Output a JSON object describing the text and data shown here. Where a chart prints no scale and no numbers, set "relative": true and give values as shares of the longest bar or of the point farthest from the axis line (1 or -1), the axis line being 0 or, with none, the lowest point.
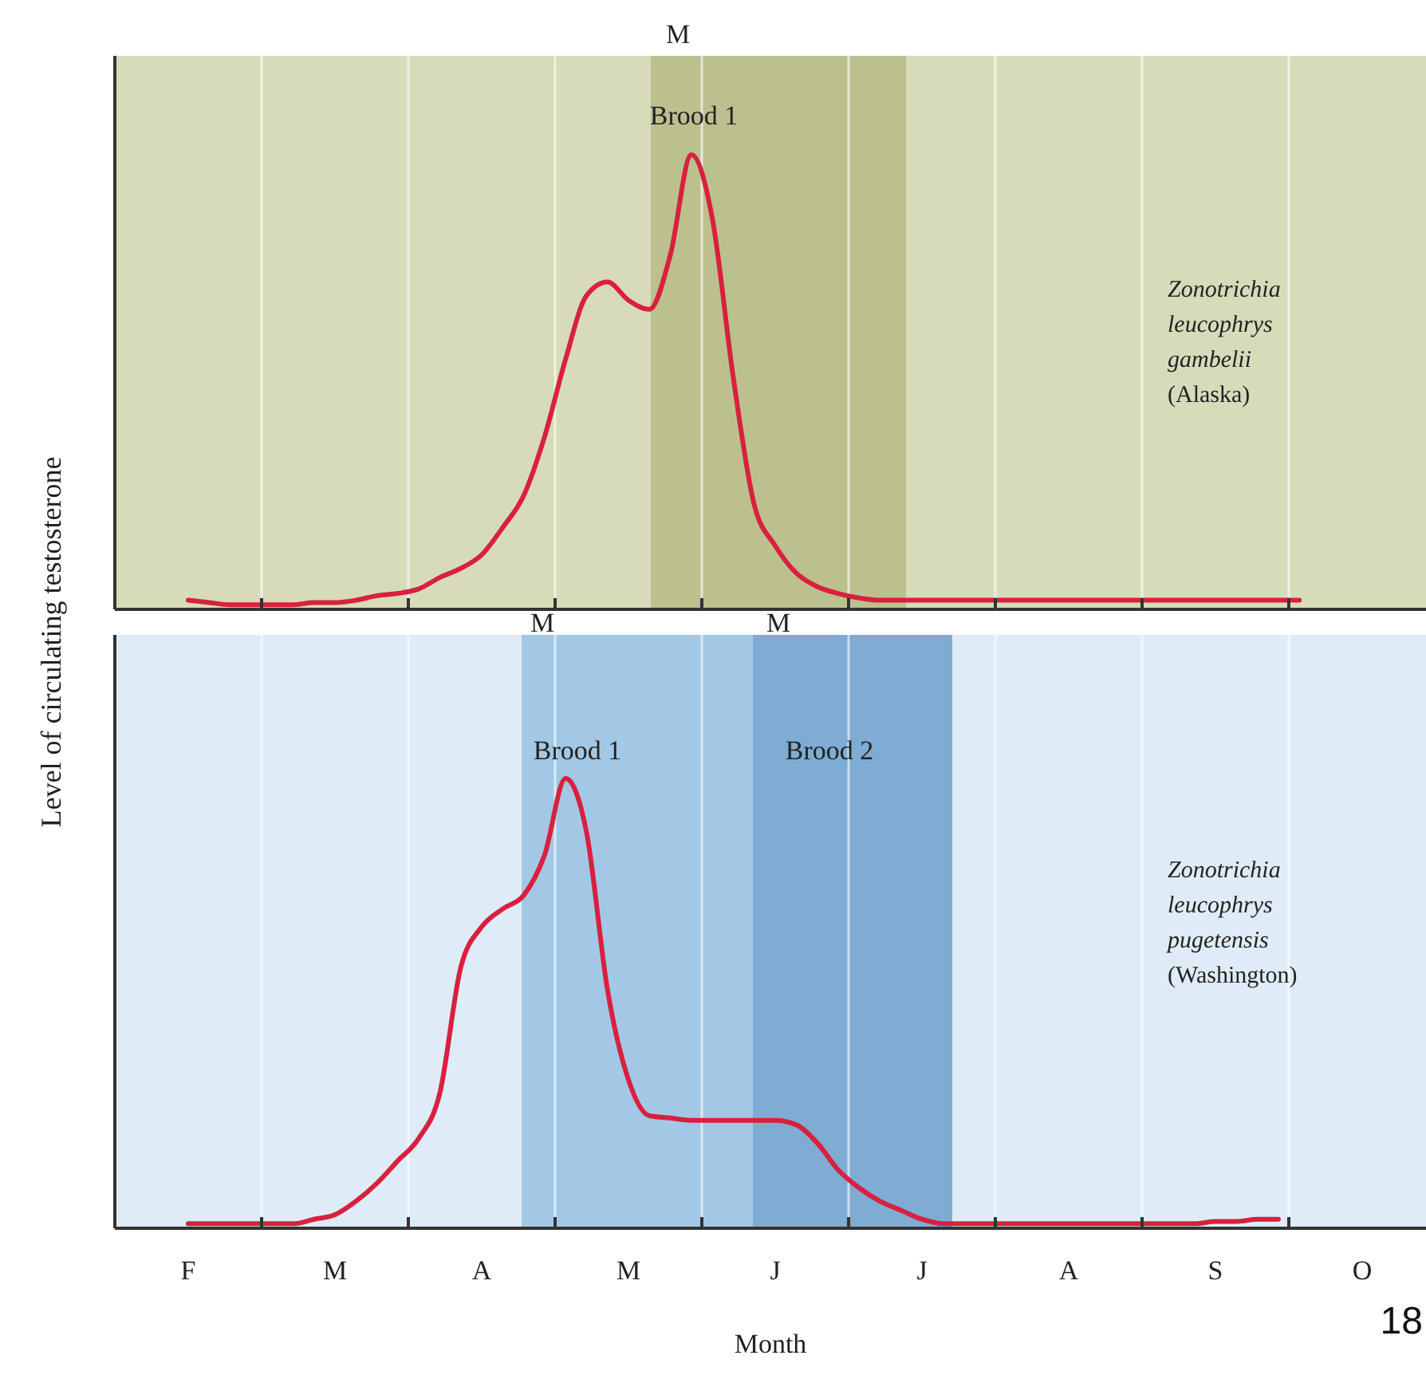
{
  "chart_data": [
    {
      "type": "line",
      "relative": true,
      "ylabel": "Level of circulating testosterone",
      "tick_labels": false,
      "grid": "x",
      "categories": [
        null,
        null,
        null,
        null,
        null,
        null,
        null,
        null,
        null,
        null,
        null,
        null,
        null,
        null,
        null,
        null,
        null,
        null,
        null,
        null,
        null,
        null,
        null,
        null,
        null,
        null,
        null,
        null,
        null,
        null,
        null,
        null,
        null,
        null,
        null,
        null,
        null,
        null,
        null,
        null,
        null,
        null,
        null,
        null,
        null,
        null,
        null,
        null,
        null,
        null,
        null,
        null,
        null,
        null,
        null,
        null,
        null,
        null,
        null,
        null,
        null,
        null,
        null
      ],
      "annotations": [
        "M",
        "Brood 1",
        "Zonotrichia\nleucophrys\ngambelii\n(Alaska)"
      ],
      "series": [
        {
          "color": "#d9203f",
          "values": [
            null,
            null,
            null,
            0.02,
            0.015,
            0.01,
            0.01,
            0.01,
            0.01,
            0.015,
            0.015,
            0.02,
            0.03,
            0.035,
            0.045,
            0.07,
            0.09,
            0.12,
            0.18,
            0.25,
            0.38,
            0.55,
            0.69,
            0.72,
            0.68,
            0.66,
            0.78,
            1.0,
            0.86,
            0.51,
            0.23,
            0.14,
            0.08,
            0.05,
            0.035,
            0.025,
            0.02,
            0.02,
            0.02,
            0.02,
            0.02,
            0.02,
            0.02,
            0.02,
            0.02,
            0.02,
            0.02,
            0.02,
            0.02,
            0.02,
            0.02,
            0.02,
            0.02,
            0.02,
            0.02,
            0.02,
            0.02,
            null,
            null,
            null,
            null,
            null,
            null
          ]
        }
      ]
    },
    {
      "type": "line",
      "relative": true,
      "xlabel": "Month",
      "tick_labels": "x",
      "grid": "x",
      "categories": [
        null,
        null,
        null,
        "F",
        null,
        null,
        null,
        null,
        null,
        null,
        "M",
        null,
        null,
        null,
        null,
        null,
        null,
        "A",
        null,
        null,
        null,
        null,
        null,
        null,
        "M",
        null,
        null,
        null,
        null,
        null,
        null,
        "J",
        null,
        null,
        null,
        null,
        null,
        null,
        "J",
        null,
        null,
        null,
        null,
        null,
        null,
        "A",
        null,
        null,
        null,
        null,
        null,
        null,
        "S",
        null,
        null,
        null,
        null,
        null,
        null,
        "O",
        null,
        null,
        null
      ],
      "annotations": [
        "M",
        "M",
        "Brood 1",
        "Brood 2",
        "Zonotrichia\nleucophrys\npugetensis\n(Washington)",
        "18"
      ],
      "series": [
        {
          "color": "#d9203f",
          "values": [
            null,
            null,
            null,
            0.01,
            0.01,
            0.01,
            0.01,
            0.01,
            0.01,
            0.02,
            0.03,
            0.06,
            0.1,
            0.15,
            0.2,
            0.3,
            0.58,
            0.67,
            0.71,
            0.74,
            0.83,
            1.0,
            0.88,
            0.53,
            0.33,
            0.25,
            0.245,
            0.24,
            0.24,
            0.24,
            0.24,
            0.24,
            0.23,
            0.19,
            0.13,
            0.09,
            0.06,
            0.04,
            0.02,
            0.01,
            0.01,
            0.01,
            0.01,
            0.01,
            0.01,
            0.01,
            0.01,
            0.01,
            0.01,
            0.01,
            0.01,
            0.01,
            0.015,
            0.015,
            0.02,
            0.02,
            null,
            null,
            null,
            null,
            null,
            null,
            null
          ]
        }
      ]
    }
  ]
}
